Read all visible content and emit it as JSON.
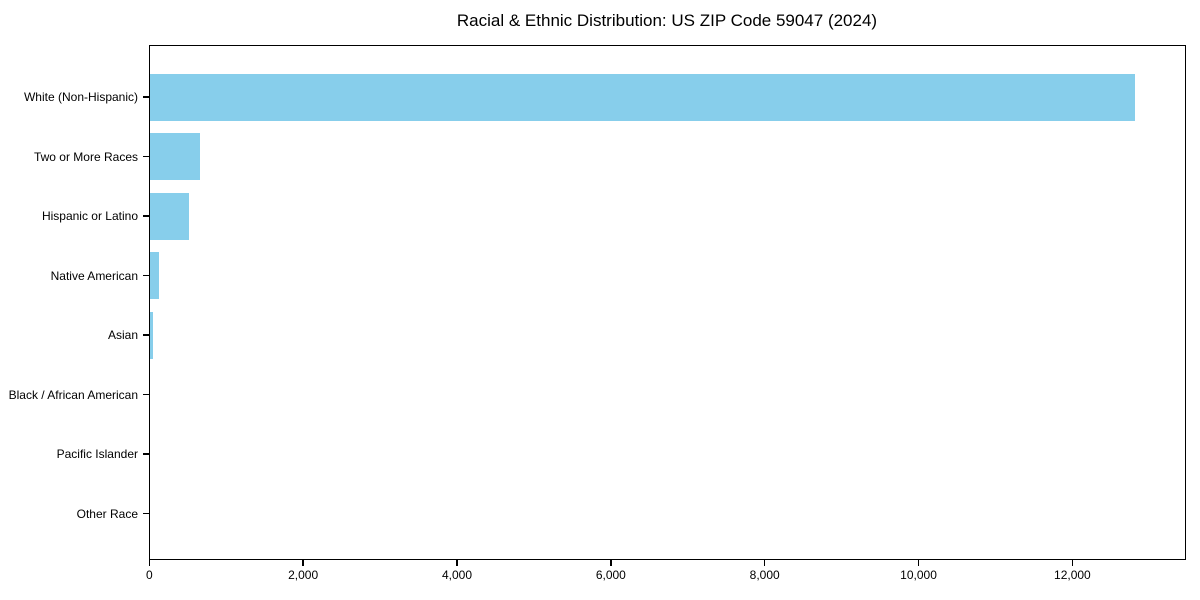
{
  "chart_data": {
    "type": "bar",
    "orientation": "horizontal",
    "title": "Racial & Ethnic Distribution: US ZIP Code 59047 (2024)",
    "categories": [
      "White (Non-Hispanic)",
      "Two or More Races",
      "Hispanic or Latino",
      "Native American",
      "Asian",
      "Black / African American",
      "Pacific Islander",
      "Other Race"
    ],
    "values": [
      12800,
      650,
      500,
      110,
      40,
      0,
      0,
      0
    ],
    "xlabel": "",
    "ylabel": "",
    "xlim": [
      0,
      13460
    ],
    "xticks": [
      0,
      2000,
      4000,
      6000,
      8000,
      10000,
      12000
    ],
    "xtick_labels": [
      "0",
      "2,000",
      "4,000",
      "6,000",
      "8,000",
      "10,000",
      "12,000"
    ],
    "bar_color": "#87ceeb",
    "background_color": "#ffffff",
    "grid": false,
    "legend": null
  }
}
